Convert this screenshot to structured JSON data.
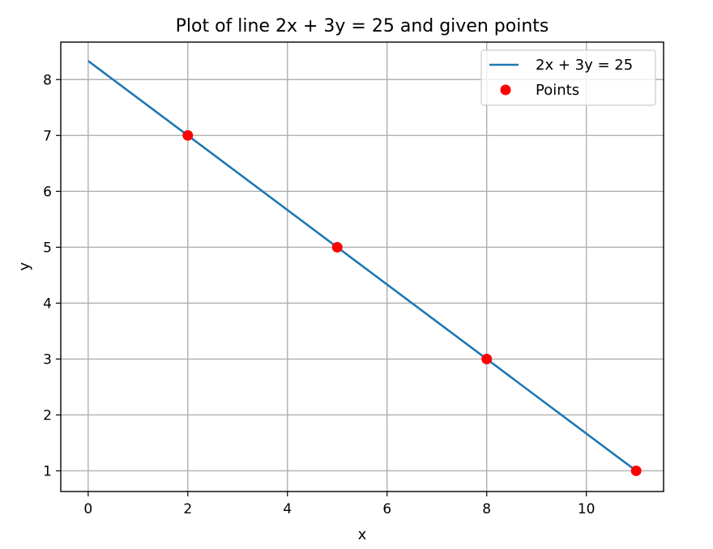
{
  "chart_data": {
    "type": "line",
    "title": "Plot of line 2x + 3y = 25 and given points",
    "xlabel": "x",
    "ylabel": "y",
    "xlim": [
      -0.55,
      11.55
    ],
    "ylim": [
      0.63,
      8.67
    ],
    "xticks": [
      0,
      2,
      4,
      6,
      8,
      10
    ],
    "yticks": [
      1,
      2,
      3,
      4,
      5,
      6,
      7,
      8
    ],
    "grid": true,
    "legend_position": "top-right",
    "series": [
      {
        "name": "2x + 3y = 25",
        "kind": "line",
        "color": "#1f77b4",
        "x": [
          0,
          11
        ],
        "y": [
          8.333,
          1
        ]
      },
      {
        "name": "Points",
        "kind": "scatter",
        "color": "#ff0000",
        "x": [
          2,
          5,
          8,
          11
        ],
        "y": [
          7,
          5,
          3,
          1
        ]
      }
    ]
  }
}
